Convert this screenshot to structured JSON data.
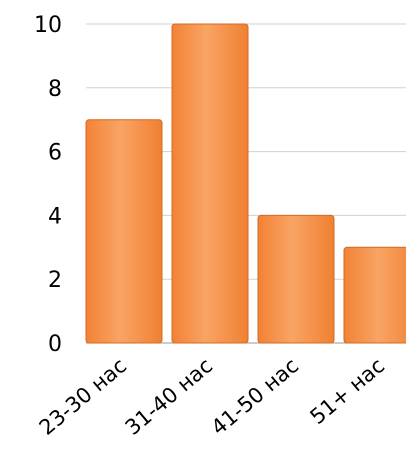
{
  "chart_data": {
    "type": "bar",
    "categories": [
      "23-30 нас",
      "31-40 нас",
      "41-50 нас",
      "51+ нас"
    ],
    "values": [
      7,
      10,
      4,
      3
    ],
    "ylim": [
      0,
      10
    ],
    "yticks": [
      "0",
      "2",
      "4",
      "6",
      "8",
      "10"
    ],
    "grid": true,
    "legend": "none",
    "bar_color": "#F58B3F",
    "bar_highlight": "#F9A66A"
  }
}
